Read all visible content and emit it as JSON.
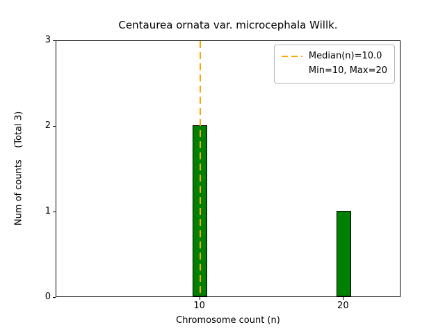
{
  "chart_data": {
    "type": "bar",
    "title": "Centaurea ornata var. microcephala Willk.",
    "xlabel": "Chromosome count (n)",
    "ylabel": "Num of counts    (Total 3)",
    "x": [
      10,
      20
    ],
    "values": [
      2,
      1
    ],
    "bar_width": 1,
    "xlim": [
      0,
      24
    ],
    "ylim": [
      0,
      3
    ],
    "xticks": [
      10,
      20
    ],
    "yticks": [
      0,
      1,
      2,
      3
    ],
    "bar_color": "#008000",
    "bar_edge_color": "#000000",
    "grid": false,
    "median_line": {
      "x": 10,
      "color": "#FFA500",
      "style": "dashed"
    },
    "legend": {
      "position": "upper-right",
      "entries": [
        {
          "symbol": "dashed-line",
          "color": "#FFA500",
          "label": "Median(n)=10.0"
        },
        {
          "symbol": "none",
          "color": "",
          "label": "Min=10, Max=20"
        }
      ]
    }
  }
}
